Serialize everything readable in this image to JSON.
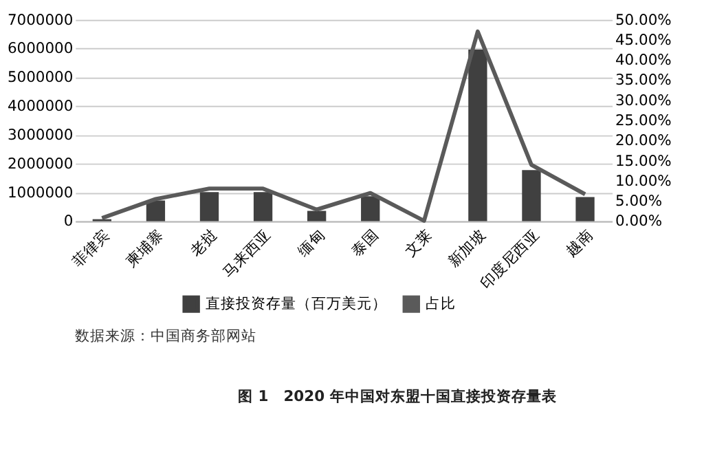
{
  "chart_data": {
    "type": "bar",
    "title": "图 1　2020 年中国对东盟十国直接投资存量表",
    "categories": [
      "菲律宾",
      "柬埔寨",
      "老挝",
      "马来西亚",
      "缅甸",
      "泰国",
      "文莱",
      "新加坡",
      "印度尼西亚",
      "越南"
    ],
    "series": [
      {
        "name": "直接投资存量（百万美元）",
        "color": "#404040",
        "values": [
          70000,
          720000,
          1010000,
          1010000,
          360000,
          870000,
          0,
          5970000,
          1780000,
          840000
        ]
      },
      {
        "name": "占比",
        "color": "#5a5a5a",
        "type": "line",
        "axis": "y2",
        "values": [
          0.8,
          5.5,
          8.1,
          8.1,
          2.9,
          7.0,
          0.1,
          47.1,
          14.0,
          6.7
        ]
      }
    ],
    "ylim": [
      0,
      7000000
    ],
    "yticks": [
      0,
      1000000,
      2000000,
      3000000,
      4000000,
      5000000,
      6000000,
      7000000
    ],
    "y2lim": [
      0,
      50
    ],
    "y2ticks": [
      {
        "value": 0,
        "label": "0.00%"
      },
      {
        "value": 5,
        "label": "5.00%"
      },
      {
        "value": 10,
        "label": "10.00%"
      },
      {
        "value": 15,
        "label": "15.00%"
      },
      {
        "value": 20,
        "label": "20.00%"
      },
      {
        "value": 25,
        "label": "25.00%"
      },
      {
        "value": 30,
        "label": "30.00%"
      },
      {
        "value": 35,
        "label": "35.00%"
      },
      {
        "value": 40,
        "label": "40.00%"
      },
      {
        "value": 45,
        "label": "45.00%"
      },
      {
        "value": 50,
        "label": "50.00%"
      }
    ],
    "grid": "y",
    "legend": "bottom",
    "line_style": "solid",
    "marker": "none",
    "annotations": [
      "数据来源：中国商务部网站"
    ]
  }
}
